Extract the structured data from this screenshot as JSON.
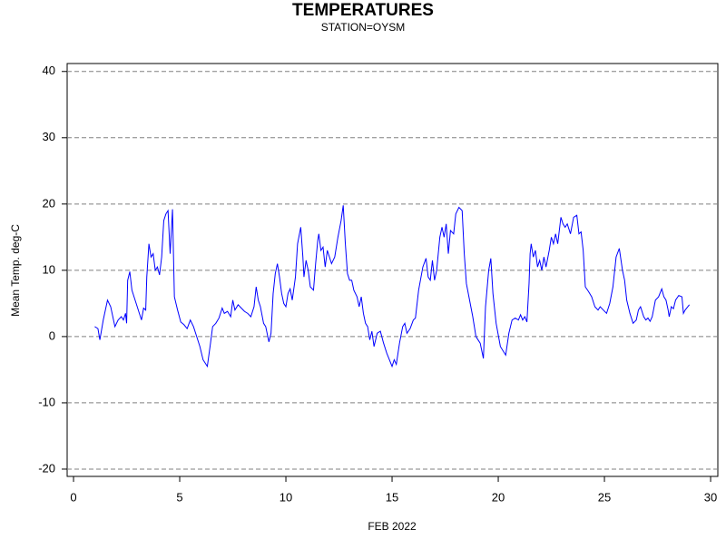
{
  "chart_data": {
    "type": "line",
    "title": "TEMPERATURES",
    "subtitle": "STATION=OYSM",
    "x_label": "FEB 2022",
    "y_label": "Mean Temp. deg-C",
    "xlim": [
      -0.3,
      30.34
    ],
    "ylim": [
      -21.1,
      41.2
    ],
    "xticks": [
      0,
      5,
      10,
      15,
      20,
      25,
      30
    ],
    "yticks": [
      -20,
      -10,
      0,
      10,
      20,
      30,
      40
    ],
    "grid": true,
    "series": [
      {
        "color": "#0000ff",
        "x": [
          1.0,
          1.15,
          1.24,
          1.4,
          1.6,
          1.75,
          1.95,
          2.1,
          2.25,
          2.35,
          2.45,
          2.5,
          2.55,
          2.65,
          2.75,
          2.95,
          3.1,
          3.2,
          3.3,
          3.4,
          3.45,
          3.55,
          3.65,
          3.75,
          3.85,
          3.95,
          4.05,
          4.15,
          4.25,
          4.35,
          4.45,
          4.55,
          4.66,
          4.75,
          4.9,
          5.05,
          5.2,
          5.35,
          5.5,
          5.65,
          5.8,
          5.95,
          6.1,
          6.3,
          6.45,
          6.55,
          6.7,
          6.85,
          7.0,
          7.1,
          7.25,
          7.4,
          7.5,
          7.6,
          7.75,
          7.9,
          8.05,
          8.2,
          8.35,
          8.5,
          8.6,
          8.7,
          8.8,
          8.95,
          9.05,
          9.2,
          9.3,
          9.4,
          9.5,
          9.6,
          9.7,
          9.8,
          9.9,
          10.0,
          10.1,
          10.2,
          10.3,
          10.45,
          10.55,
          10.7,
          10.8,
          10.85,
          10.95,
          11.05,
          11.15,
          11.3,
          11.4,
          11.5,
          11.55,
          11.65,
          11.75,
          11.85,
          11.95,
          12.05,
          12.15,
          12.3,
          12.45,
          12.6,
          12.7,
          12.8,
          12.9,
          13.0,
          13.1,
          13.2,
          13.35,
          13.45,
          13.55,
          13.65,
          13.75,
          13.85,
          13.95,
          14.05,
          14.15,
          14.3,
          14.45,
          14.6,
          14.75,
          15.0,
          15.1,
          15.2,
          15.35,
          15.5,
          15.6,
          15.7,
          15.85,
          16.0,
          16.1,
          16.25,
          16.45,
          16.6,
          16.7,
          16.8,
          16.9,
          17.0,
          17.1,
          17.25,
          17.35,
          17.45,
          17.55,
          17.65,
          17.75,
          17.9,
          18.0,
          18.15,
          18.3,
          18.4,
          18.5,
          18.65,
          18.8,
          18.95,
          19.05,
          19.15,
          19.3,
          19.4,
          19.55,
          19.65,
          19.75,
          19.9,
          20.1,
          20.35,
          20.5,
          20.65,
          20.8,
          20.95,
          21.05,
          21.15,
          21.25,
          21.35,
          21.45,
          21.5,
          21.55,
          21.65,
          21.75,
          21.85,
          21.95,
          22.05,
          22.15,
          22.25,
          22.4,
          22.5,
          22.6,
          22.7,
          22.8,
          22.95,
          23.05,
          23.15,
          23.25,
          23.4,
          23.55,
          23.7,
          23.8,
          23.9,
          24.0,
          24.1,
          24.25,
          24.4,
          24.55,
          24.7,
          24.8,
          24.95,
          25.1,
          25.25,
          25.4,
          25.55,
          25.7,
          25.85,
          25.95,
          26.05,
          26.2,
          26.35,
          26.5,
          26.6,
          26.7,
          26.85,
          26.95,
          27.05,
          27.15,
          27.25,
          27.4,
          27.55,
          27.7,
          27.8,
          27.9,
          28.0,
          28.05,
          28.15,
          28.25,
          28.35,
          28.5,
          28.65,
          28.72,
          28.8,
          29.0
        ],
        "values": [
          1.5,
          1.2,
          -0.5,
          2.5,
          5.5,
          4.5,
          1.5,
          2.5,
          3.0,
          2.5,
          3.5,
          2.0,
          8.5,
          9.8,
          7.0,
          5.0,
          3.5,
          2.5,
          4.3,
          4.0,
          9.0,
          14.0,
          12.0,
          12.5,
          10.0,
          10.5,
          9.3,
          12.0,
          17.5,
          18.5,
          19.0,
          12.5,
          19.2,
          6.0,
          4.0,
          2.2,
          1.8,
          1.2,
          2.5,
          1.5,
          0,
          -1.5,
          -3.5,
          -4.5,
          -1.0,
          1.5,
          2.0,
          2.8,
          4.3,
          3.5,
          3.8,
          3.0,
          5.5,
          4.0,
          4.8,
          4.3,
          3.8,
          3.5,
          3.0,
          4.5,
          7.5,
          5.5,
          4.5,
          2.0,
          1.5,
          -0.8,
          0.5,
          6.5,
          9.5,
          11.0,
          9.0,
          6.5,
          5.0,
          4.5,
          6.5,
          7.2,
          5.5,
          9.0,
          14.0,
          16.5,
          12.0,
          9.0,
          11.5,
          10.0,
          7.5,
          7.0,
          11.0,
          14.5,
          15.5,
          13.0,
          13.5,
          10.5,
          13.0,
          12.0,
          11.0,
          12.0,
          15.0,
          17.5,
          19.8,
          14.0,
          9.5,
          8.5,
          8.5,
          7.0,
          6.0,
          4.5,
          6.0,
          3.5,
          2.0,
          1.5,
          -0.5,
          0.8,
          -1.5,
          0.5,
          0.8,
          -1.0,
          -2.5,
          -4.5,
          -3.5,
          -4.2,
          -1.0,
          1.5,
          2.0,
          0.5,
          1.2,
          2.5,
          2.8,
          7.0,
          10.5,
          11.8,
          9.0,
          8.5,
          11.5,
          8.5,
          10.0,
          15.0,
          16.5,
          15.0,
          17.0,
          12.5,
          16.0,
          15.5,
          18.5,
          19.5,
          19.0,
          12.5,
          8.0,
          5.5,
          3.0,
          0,
          -0.5,
          -1.0,
          -3.3,
          4.5,
          10.0,
          11.8,
          6.5,
          2.0,
          -1.5,
          -2.8,
          0.5,
          2.5,
          2.8,
          2.5,
          3.3,
          2.5,
          3.0,
          2.2,
          8.0,
          12.5,
          14.0,
          12.0,
          13.0,
          10.5,
          11.5,
          10.0,
          12.0,
          10.5,
          13.0,
          15.0,
          14.0,
          15.5,
          14.0,
          18.0,
          17.0,
          16.5,
          17.0,
          15.5,
          18.0,
          18.3,
          15.5,
          15.8,
          13.0,
          7.5,
          6.8,
          6.0,
          4.5,
          4.0,
          4.5,
          4.0,
          3.5,
          5.0,
          7.5,
          12.0,
          13.3,
          10.0,
          8.5,
          5.5,
          3.5,
          2.0,
          2.5,
          4.0,
          4.5,
          3.0,
          2.5,
          2.8,
          2.3,
          3.0,
          5.5,
          6.0,
          7.2,
          6.0,
          5.5,
          4.0,
          3.0,
          4.5,
          4.2,
          5.5,
          6.2,
          6.0,
          3.5,
          4.0,
          4.8
        ]
      }
    ]
  }
}
